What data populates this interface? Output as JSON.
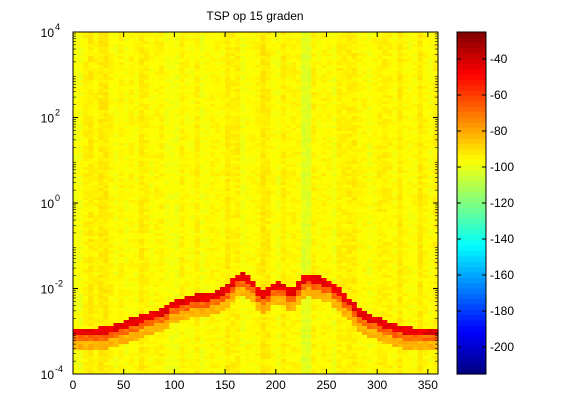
{
  "chart_data": {
    "type": "heatmap",
    "title": "TSP op 15 graden",
    "xlabel": "",
    "ylabel": "",
    "x_axis": {
      "min": 0,
      "max": 360,
      "ticks": [
        "0",
        "50",
        "100",
        "150",
        "200",
        "250",
        "300",
        "350"
      ]
    },
    "y_axis": {
      "scale": "log",
      "min": 0.0001,
      "max": 10000,
      "exponent_ticks": [
        "4",
        "2",
        "0",
        "-2",
        "-4"
      ]
    },
    "colorbar": {
      "colormap": "jet",
      "min": -215,
      "max": -25,
      "ticks": [
        "-40",
        "-60",
        "-80",
        "-100",
        "-120",
        "-140",
        "-160",
        "-180",
        "-200"
      ]
    },
    "background_level_db": -95,
    "ridge": {
      "description_level_db": -45,
      "x": [
        0,
        10,
        20,
        30,
        40,
        50,
        60,
        70,
        80,
        90,
        100,
        110,
        120,
        130,
        140,
        150,
        155,
        160,
        165,
        170,
        175,
        180,
        185,
        190,
        195,
        200,
        205,
        210,
        215,
        220,
        225,
        230,
        235,
        240,
        245,
        250,
        255,
        260,
        265,
        270,
        275,
        280,
        290,
        300,
        310,
        320,
        330,
        340,
        350,
        360
      ],
      "y": [
        0.0009,
        0.0009,
        0.0009,
        0.001,
        0.0011,
        0.0013,
        0.0016,
        0.0019,
        0.0023,
        0.0029,
        0.0042,
        0.0048,
        0.0055,
        0.0058,
        0.0065,
        0.0085,
        0.011,
        0.015,
        0.018,
        0.017,
        0.015,
        0.01,
        0.0065,
        0.0075,
        0.0095,
        0.011,
        0.012,
        0.0092,
        0.0065,
        0.0095,
        0.0135,
        0.0165,
        0.016,
        0.015,
        0.0145,
        0.013,
        0.011,
        0.009,
        0.0068,
        0.0052,
        0.0042,
        0.0028,
        0.002,
        0.0016,
        0.0013,
        0.0011,
        0.001,
        0.0009,
        0.0009,
        0.0009
      ]
    },
    "vertical_band_x": [
      230,
      232,
      233
    ]
  }
}
